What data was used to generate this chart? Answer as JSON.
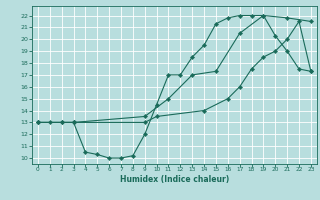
{
  "xlabel": "Humidex (Indice chaleur)",
  "bg_color": "#b8dede",
  "line_color": "#1a6b5a",
  "grid_color": "#ffffff",
  "xlim": [
    -0.5,
    23.5
  ],
  "ylim": [
    9.5,
    22.8
  ],
  "xticks": [
    0,
    1,
    2,
    3,
    4,
    5,
    6,
    7,
    8,
    9,
    10,
    11,
    12,
    13,
    14,
    15,
    16,
    17,
    18,
    19,
    20,
    21,
    22,
    23
  ],
  "yticks": [
    10,
    11,
    12,
    13,
    14,
    15,
    16,
    17,
    18,
    19,
    20,
    21,
    22
  ],
  "line1_x": [
    0,
    1,
    2,
    3,
    4,
    5,
    6,
    7,
    8,
    9,
    10,
    11,
    12,
    13,
    14,
    15,
    16,
    17,
    18,
    19,
    20,
    21,
    22,
    23
  ],
  "line1_y": [
    13,
    13,
    13,
    13,
    10.5,
    10.3,
    10,
    10,
    10.2,
    12,
    14.5,
    17,
    17,
    18.5,
    19.5,
    21.3,
    21.8,
    22,
    22,
    22,
    20.3,
    19,
    17.5,
    17.3
  ],
  "line2_x": [
    0,
    2,
    3,
    9,
    10,
    14,
    16,
    17,
    18,
    19,
    20,
    21,
    22,
    23
  ],
  "line2_y": [
    13,
    13,
    13,
    13,
    13.5,
    14,
    15,
    16,
    17.5,
    18.5,
    19,
    20,
    21.5,
    17.3
  ],
  "line3_x": [
    0,
    3,
    9,
    11,
    13,
    15,
    17,
    19,
    21,
    23
  ],
  "line3_y": [
    13,
    13,
    13.5,
    15,
    17,
    17.3,
    20.5,
    22,
    21.8,
    21.5
  ],
  "marker": "D",
  "markersize": 2.2,
  "linewidth": 0.8
}
